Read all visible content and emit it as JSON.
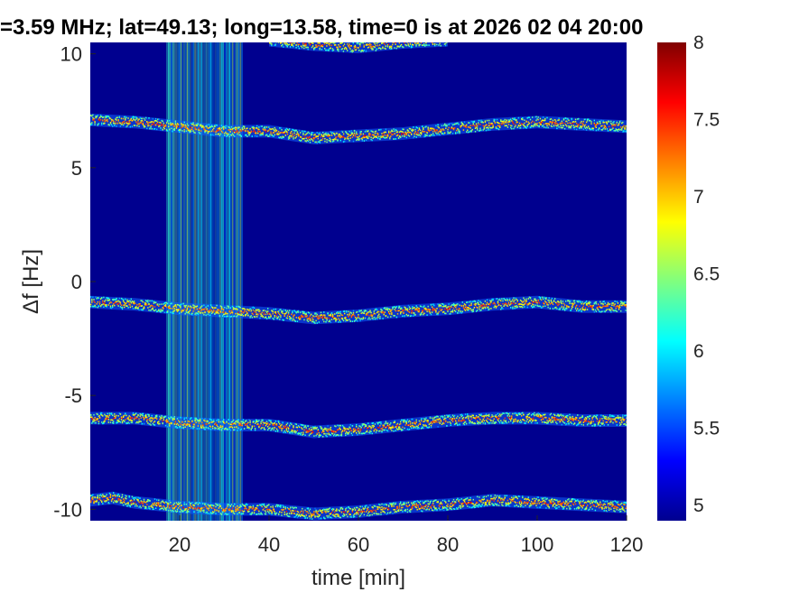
{
  "chart_data": {
    "type": "heatmap",
    "title": "=3.59 MHz;  lat=49.13; long=13.58, time=0 is at 2026 02 04 20:00",
    "xlabel": "time [min]",
    "ylabel": "Δf [Hz]",
    "xlim": [
      0,
      120
    ],
    "ylim": [
      -10.5,
      10.5
    ],
    "x_ticks": [
      20,
      40,
      60,
      80,
      100,
      120
    ],
    "y_ticks": [
      -10,
      -5,
      0,
      5,
      10
    ],
    "background_color": "#00008f",
    "colorbar": {
      "range": [
        4.9,
        8
      ],
      "ticks": [
        5,
        5.5,
        6,
        6.5,
        7,
        7.5,
        8
      ],
      "colormap": "jet"
    },
    "bands": [
      {
        "base": -9.8,
        "points": [
          [
            0,
            -9.6
          ],
          [
            5,
            -9.5
          ],
          [
            10,
            -9.7
          ],
          [
            20,
            -9.9
          ],
          [
            30,
            -10.0
          ],
          [
            40,
            -10.0
          ],
          [
            50,
            -10.2
          ],
          [
            60,
            -10.1
          ],
          [
            70,
            -9.9
          ],
          [
            80,
            -9.8
          ],
          [
            90,
            -9.6
          ],
          [
            100,
            -9.7
          ],
          [
            110,
            -9.8
          ],
          [
            120,
            -9.9
          ]
        ]
      },
      {
        "base": -6.1,
        "points": [
          [
            0,
            -6.0
          ],
          [
            10,
            -6.0
          ],
          [
            20,
            -6.2
          ],
          [
            30,
            -6.3
          ],
          [
            40,
            -6.3
          ],
          [
            50,
            -6.6
          ],
          [
            60,
            -6.5
          ],
          [
            70,
            -6.3
          ],
          [
            80,
            -6.1
          ],
          [
            90,
            -6.0
          ],
          [
            100,
            -6.0
          ],
          [
            110,
            -6.1
          ],
          [
            120,
            -6.1
          ]
        ]
      },
      {
        "base": -1.1,
        "points": [
          [
            0,
            -0.9
          ],
          [
            10,
            -1.0
          ],
          [
            20,
            -1.2
          ],
          [
            30,
            -1.3
          ],
          [
            40,
            -1.4
          ],
          [
            50,
            -1.6
          ],
          [
            60,
            -1.5
          ],
          [
            70,
            -1.3
          ],
          [
            80,
            -1.2
          ],
          [
            90,
            -1.0
          ],
          [
            100,
            -0.9
          ],
          [
            110,
            -1.1
          ],
          [
            120,
            -1.1
          ]
        ]
      },
      {
        "base": 6.7,
        "points": [
          [
            0,
            7.1
          ],
          [
            10,
            7.0
          ],
          [
            20,
            6.8
          ],
          [
            30,
            6.6
          ],
          [
            40,
            6.6
          ],
          [
            50,
            6.3
          ],
          [
            60,
            6.4
          ],
          [
            70,
            6.5
          ],
          [
            80,
            6.7
          ],
          [
            90,
            6.9
          ],
          [
            100,
            7.0
          ],
          [
            110,
            6.9
          ],
          [
            120,
            6.8
          ]
        ]
      },
      {
        "base": 10.4,
        "points": [
          [
            40,
            10.6
          ],
          [
            50,
            10.4
          ],
          [
            60,
            10.3
          ],
          [
            70,
            10.5
          ],
          [
            80,
            10.6
          ]
        ]
      }
    ],
    "interference": {
      "x_start": 17,
      "x_end": 34
    }
  }
}
